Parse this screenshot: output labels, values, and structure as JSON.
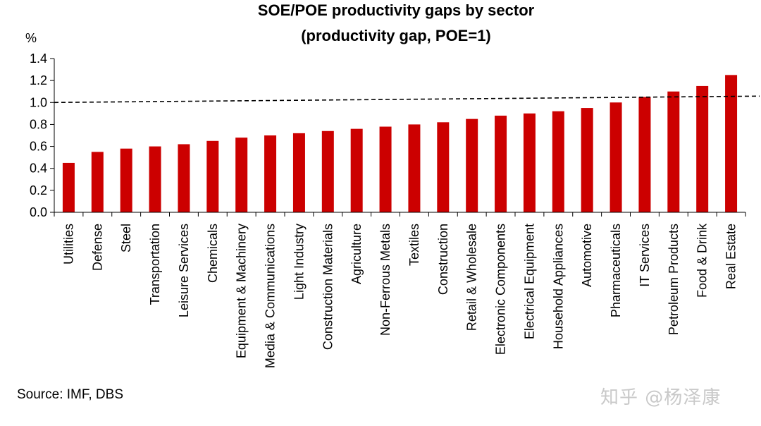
{
  "chart_data": {
    "type": "bar",
    "title": "SOE/POE productivity gaps by sector",
    "subtitle": "(productivity gap, POE=1)",
    "ylabel": "%",
    "xlabel": "",
    "ylim": [
      0,
      1.4
    ],
    "yticks": [
      "0.0",
      "0.2",
      "0.4",
      "0.6",
      "0.8",
      "1.0",
      "1.2",
      "1.4"
    ],
    "categories": [
      "Utilities",
      "Defense",
      "Steel",
      "Transportation",
      "Leisure Services",
      "Chemicals",
      "Equipment & Machinery",
      "Media & Communications",
      "Light Industry",
      "Construction Materials",
      "Agriculture",
      "Non-Ferrous Metals",
      "Textiles",
      "Construction",
      "Retail & Wholesale",
      "Electronic Components",
      "Electrical Equipment",
      "Household Appliances",
      "Automotive",
      "Pharmaceuticals",
      "IT Services",
      "Petroleum Products",
      "Food & Drink",
      "Real Estate"
    ],
    "values": [
      0.45,
      0.55,
      0.58,
      0.6,
      0.62,
      0.65,
      0.68,
      0.7,
      0.72,
      0.74,
      0.76,
      0.78,
      0.8,
      0.82,
      0.85,
      0.88,
      0.9,
      0.92,
      0.95,
      1.0,
      1.05,
      1.1,
      1.15,
      1.25
    ],
    "reference_line": 1.0,
    "bar_color": "#cc0000",
    "grid": false,
    "legend": "none"
  },
  "footer": {
    "source": "Source: IMF, DBS",
    "watermark": "知乎 @杨泽康"
  }
}
